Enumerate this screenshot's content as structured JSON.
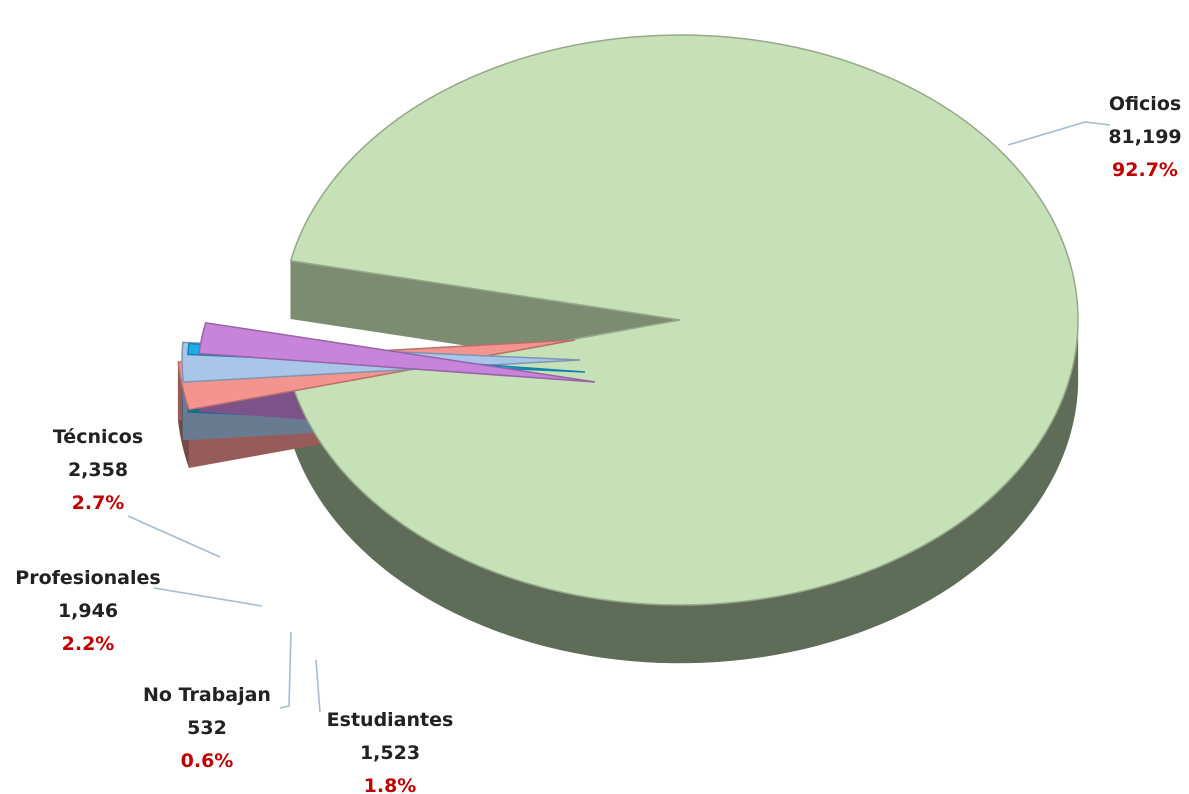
{
  "chart_data": {
    "type": "pie",
    "title": "",
    "slices": [
      {
        "label": "Oficios",
        "value": 81199,
        "value_label": "81,199",
        "percent": 92.7,
        "percent_label": "92.7%",
        "color": "#c6e1b7"
      },
      {
        "label": "Estudiantes",
        "value": 1523,
        "value_label": "1,523",
        "percent": 1.8,
        "percent_label": "1.8%",
        "color": "#c884db"
      },
      {
        "label": "No Trabajan",
        "value": 532,
        "value_label": "532",
        "percent": 0.6,
        "percent_label": "0.6%",
        "color": "#19aee8"
      },
      {
        "label": "Profesionales",
        "value": 1946,
        "value_label": "1,946",
        "percent": 2.2,
        "percent_label": "2.2%",
        "color": "#a9c6e8"
      },
      {
        "label": "Técnicos",
        "value": 2358,
        "value_label": "2,358",
        "percent": 2.7,
        "percent_label": "2.7%",
        "color": "#f4948f"
      }
    ],
    "style": "3d-exploded",
    "legend": "none"
  }
}
